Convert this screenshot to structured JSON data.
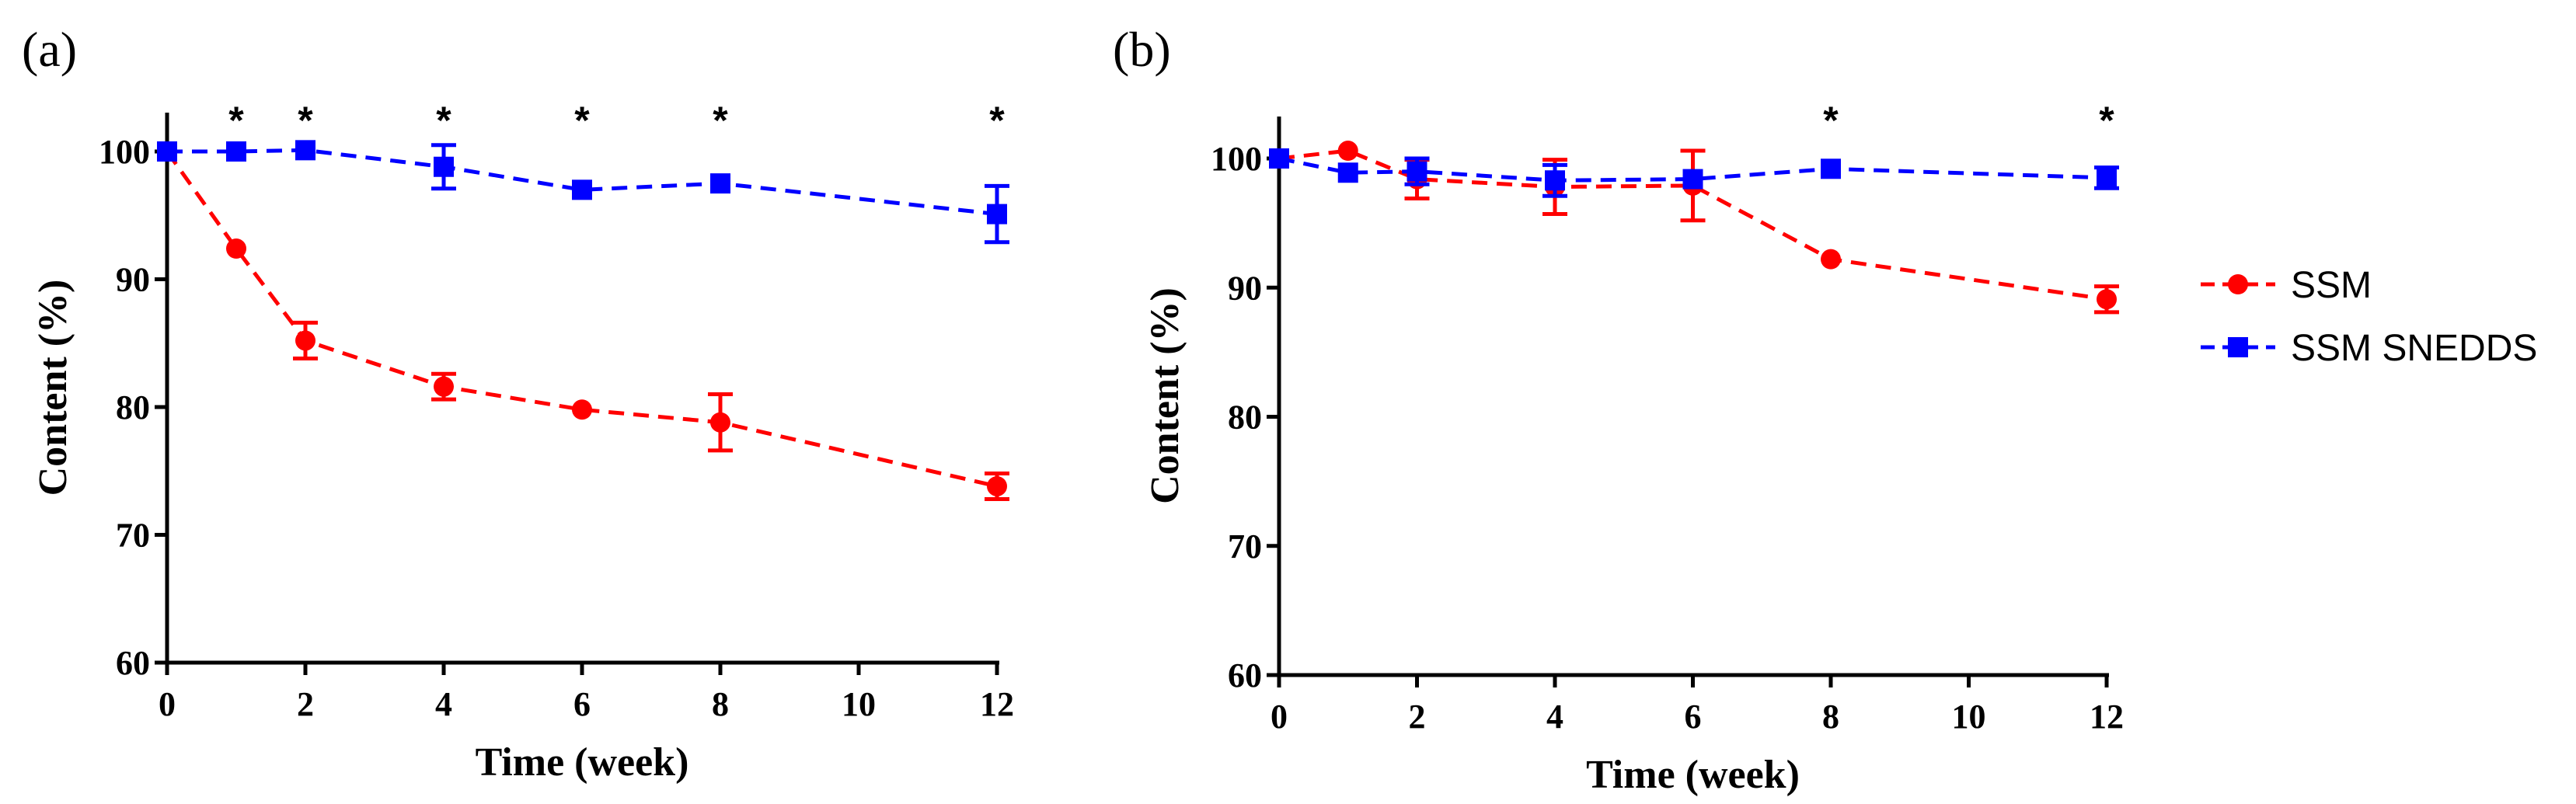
{
  "chart_data": [
    {
      "panel_label": "(a)",
      "type": "line",
      "xlabel": "Time (week)",
      "ylabel": "Content (%)",
      "xlim": [
        0,
        12
      ],
      "ylim": [
        60,
        103
      ],
      "xticks": [
        0,
        2,
        4,
        6,
        8,
        10,
        12
      ],
      "yticks": [
        60,
        70,
        80,
        90,
        100
      ],
      "series": [
        {
          "name": "SSM",
          "color": "#ff0000",
          "marker": "circle",
          "x": [
            0,
            1,
            2,
            4,
            6,
            8,
            12
          ],
          "values": [
            100,
            92.4,
            85.2,
            81.6,
            79.8,
            78.8,
            73.8
          ],
          "errors": [
            0,
            0,
            1.4,
            1.0,
            0,
            2.2,
            1.0
          ]
        },
        {
          "name": "SSM SNEDDS",
          "color": "#0000ff",
          "marker": "square",
          "x": [
            0,
            1,
            2,
            4,
            6,
            8,
            12
          ],
          "values": [
            100,
            100,
            100.1,
            98.8,
            97.0,
            97.5,
            95.1
          ],
          "errors": [
            0,
            0,
            0,
            1.7,
            0,
            0,
            2.2
          ]
        }
      ],
      "significance_marker": "*",
      "significance_x": [
        1,
        2,
        4,
        6,
        8,
        12
      ]
    },
    {
      "panel_label": "(b)",
      "type": "line",
      "xlabel": "Time (week)",
      "ylabel": "Content (%)",
      "xlim": [
        0,
        12
      ],
      "ylim": [
        60,
        103
      ],
      "xticks": [
        0,
        2,
        4,
        6,
        8,
        10,
        12
      ],
      "yticks": [
        60,
        70,
        80,
        90,
        100
      ],
      "series": [
        {
          "name": "SSM",
          "color": "#ff0000",
          "marker": "circle",
          "x": [
            0,
            1,
            2,
            4,
            6,
            8,
            12
          ],
          "values": [
            100,
            100.6,
            98.4,
            97.8,
            97.9,
            92.2,
            89.1
          ],
          "errors": [
            0,
            0,
            1.5,
            2.1,
            2.7,
            0,
            1.0
          ]
        },
        {
          "name": "SSM SNEDDS",
          "color": "#0000ff",
          "marker": "square",
          "x": [
            0,
            1,
            2,
            4,
            6,
            8,
            12
          ],
          "values": [
            100,
            98.9,
            99.0,
            98.3,
            98.4,
            99.2,
            98.5
          ],
          "errors": [
            0,
            0,
            1.0,
            1.2,
            0,
            0,
            0.8
          ]
        }
      ],
      "significance_marker": "*",
      "significance_x": [
        8,
        12
      ]
    }
  ],
  "legend": [
    {
      "label": "SSM",
      "color": "#ff0000",
      "marker": "circle"
    },
    {
      "label": "SSM SNEDDS",
      "color": "#0000ff",
      "marker": "square"
    }
  ]
}
